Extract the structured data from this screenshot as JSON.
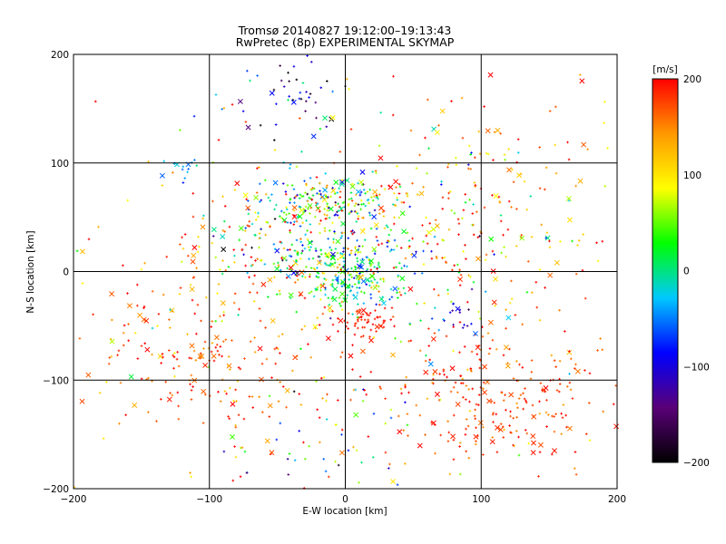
{
  "chart_data": {
    "type": "scatter",
    "title": "Tromsø 20140827 19:12:00–19:13:43",
    "subtitle": "RwPretec (8p) EXPERIMENTAL SKYMAP",
    "xlabel": "E-W location [km]",
    "ylabel": "N-S location [km]",
    "xlim": [
      -200,
      200
    ],
    "ylim": [
      -200,
      200
    ],
    "xticks": [
      "-200",
      "-100",
      "0",
      "100",
      "200"
    ],
    "yticks": [
      "-200",
      "-100",
      "0",
      "100",
      "200"
    ],
    "grid": true,
    "colorbar": {
      "label": "[m/s]",
      "min": -200,
      "max": 200,
      "ticks": [
        "200",
        "100",
        "0",
        "-100",
        "-200"
      ],
      "colormap": [
        "#000000",
        "#5a0078",
        "#0000ff",
        "#00c8ff",
        "#00ff00",
        "#ffff00",
        "#ff9900",
        "#ff0000"
      ]
    },
    "clusters": [
      {
        "x": 0,
        "y": 0,
        "sx": 22,
        "sy": 18,
        "n": 280,
        "vmean": 10,
        "vsd": 60
      },
      {
        "x": -15,
        "y": 65,
        "sx": 28,
        "sy": 14,
        "n": 220,
        "vmean": 20,
        "vsd": 90
      },
      {
        "x": 115,
        "y": -115,
        "sx": 40,
        "sy": 30,
        "n": 230,
        "vmean": 175,
        "vsd": 20
      },
      {
        "x": -105,
        "y": -75,
        "sx": 38,
        "sy": 40,
        "n": 180,
        "vmean": 165,
        "vsd": 30
      },
      {
        "x": 15,
        "y": -45,
        "sx": 10,
        "sy": 8,
        "n": 60,
        "vmean": 190,
        "vsd": 10
      },
      {
        "x": -50,
        "y": 20,
        "sx": 30,
        "sy": 25,
        "n": 120,
        "vmean": 60,
        "vsd": 110
      },
      {
        "x": -40,
        "y": 160,
        "sx": 22,
        "sy": 20,
        "n": 45,
        "vmean": -120,
        "vsd": 80
      },
      {
        "x": 70,
        "y": 30,
        "sx": 40,
        "sy": 40,
        "n": 120,
        "vmean": 100,
        "vsd": 110
      },
      {
        "x": 110,
        "y": 60,
        "sx": 50,
        "sy": 50,
        "n": 90,
        "vmean": 150,
        "vsd": 60
      },
      {
        "x": -20,
        "y": -150,
        "sx": 45,
        "sy": 30,
        "n": 70,
        "vmean": 40,
        "vsd": 130
      },
      {
        "x": 0,
        "y": 0,
        "sx": 110,
        "sy": 100,
        "n": 320,
        "vmean": 140,
        "vsd": 80
      },
      {
        "x": -120,
        "y": 95,
        "sx": 8,
        "sy": 6,
        "n": 15,
        "vmean": -45,
        "vsd": 20
      },
      {
        "x": 85,
        "y": -40,
        "sx": 12,
        "sy": 10,
        "n": 20,
        "vmean": -90,
        "vsd": 30
      }
    ]
  }
}
